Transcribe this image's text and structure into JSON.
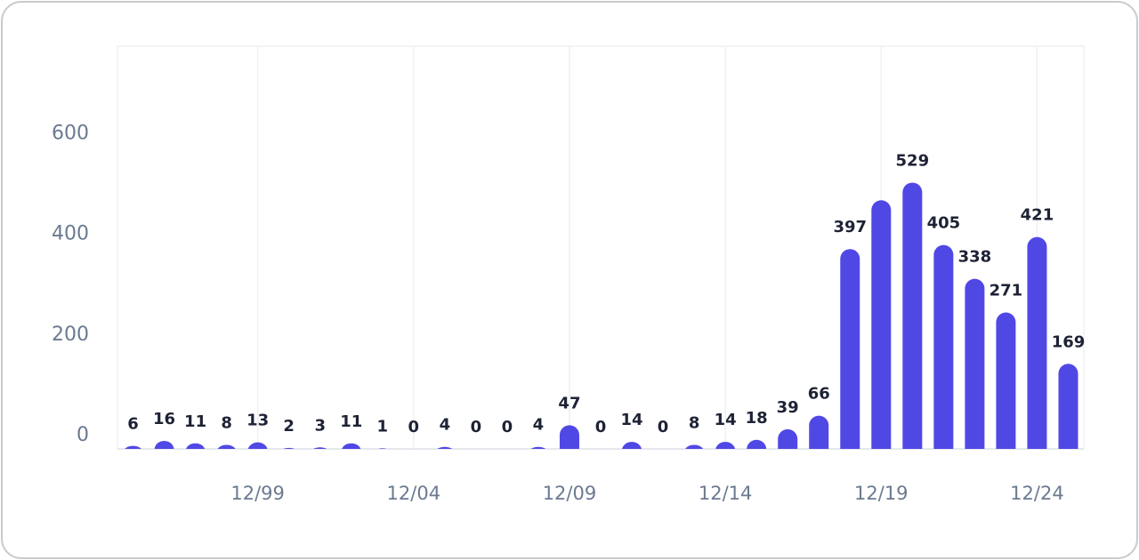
{
  "chart_data": {
    "type": "bar",
    "categories": [
      null,
      null,
      null,
      null,
      "12/99",
      null,
      null,
      null,
      null,
      "12/04",
      null,
      null,
      null,
      null,
      "12/09",
      null,
      null,
      null,
      null,
      "12/14",
      null,
      null,
      null,
      null,
      "12/19",
      null,
      null,
      null,
      null,
      "12/24",
      null
    ],
    "values": [
      6,
      16,
      11,
      8,
      13,
      2,
      3,
      11,
      1,
      0,
      4,
      0,
      0,
      4,
      47,
      0,
      14,
      0,
      8,
      14,
      18,
      39,
      66,
      397,
      494,
      529,
      405,
      338,
      271,
      421,
      169
    ],
    "value_labels": [
      "6",
      "16",
      "11",
      "8",
      "13",
      "2",
      "3",
      "11",
      "1",
      "0",
      "4",
      "0",
      "0",
      "4",
      "47",
      "0",
      "14",
      "0",
      "8",
      "14",
      "18",
      "39",
      "66",
      "397",
      null,
      "529",
      "405",
      "338",
      "271",
      "421",
      "169"
    ],
    "color": "#5048e5",
    "ylim": [
      0,
      800
    ],
    "yticks": [
      0,
      200,
      400,
      600
    ],
    "grid": true
  }
}
